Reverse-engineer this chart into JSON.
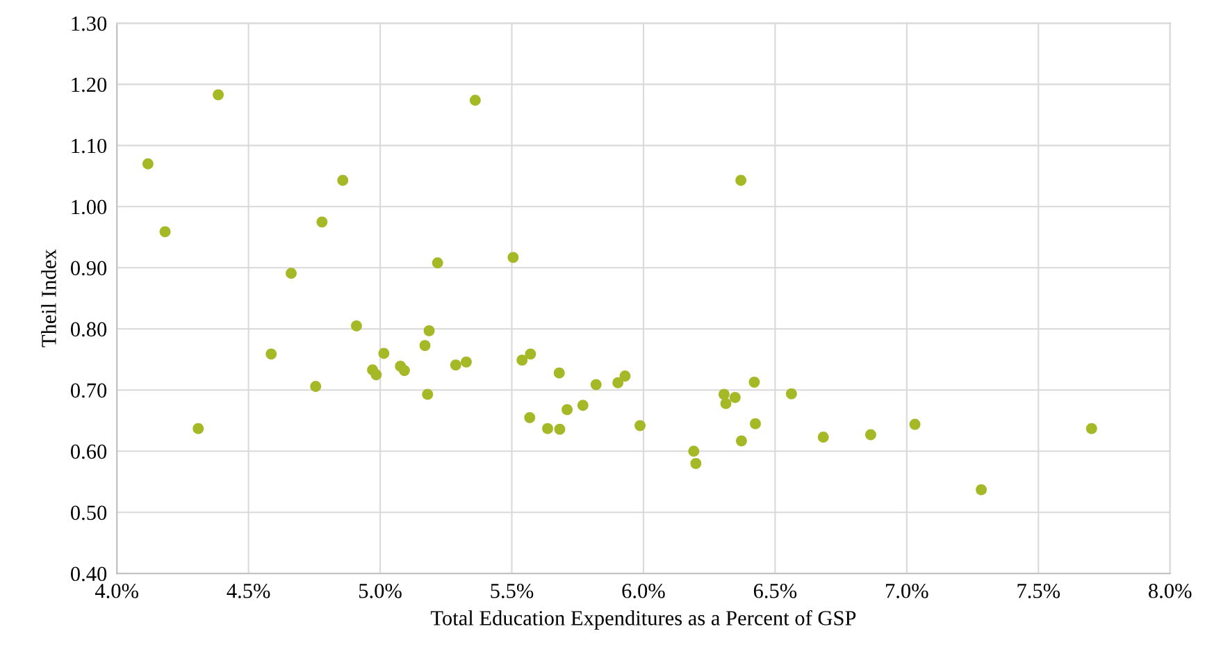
{
  "chart_data": {
    "type": "scatter",
    "xlabel": "Total Education Expenditures as a Percent of GSP",
    "ylabel": "Theil Index",
    "xlim": [
      4.0,
      8.0
    ],
    "ylim": [
      0.4,
      1.3
    ],
    "xticks": [
      {
        "value": 4.0,
        "label": "4.0%"
      },
      {
        "value": 4.5,
        "label": "4.5%"
      },
      {
        "value": 5.0,
        "label": "5.0%"
      },
      {
        "value": 5.5,
        "label": "5.5%"
      },
      {
        "value": 6.0,
        "label": "6.0%"
      },
      {
        "value": 6.5,
        "label": "6.5%"
      },
      {
        "value": 7.0,
        "label": "7.0%"
      },
      {
        "value": 7.5,
        "label": "7.5%"
      },
      {
        "value": 8.0,
        "label": "8.0%"
      }
    ],
    "yticks": [
      {
        "value": 0.4,
        "label": "0.40"
      },
      {
        "value": 0.5,
        "label": "0.50"
      },
      {
        "value": 0.6,
        "label": "0.60"
      },
      {
        "value": 0.7,
        "label": "0.70"
      },
      {
        "value": 0.8,
        "label": "0.80"
      },
      {
        "value": 0.9,
        "label": "0.90"
      },
      {
        "value": 1.0,
        "label": "1.00"
      },
      {
        "value": 1.1,
        "label": "1.10"
      },
      {
        "value": 1.2,
        "label": "1.20"
      },
      {
        "value": 1.3,
        "label": "1.30"
      }
    ],
    "grid": true,
    "marker": "circle",
    "series": [
      {
        "color": "#a5b825",
        "x": [
          4.118,
          4.385,
          4.183,
          4.309,
          4.662,
          4.586,
          4.779,
          4.858,
          4.755,
          4.91,
          4.971,
          4.985,
          5.014,
          5.077,
          5.092,
          5.17,
          5.186,
          5.18,
          5.218,
          5.287,
          5.327,
          5.361,
          5.505,
          5.539,
          5.571,
          5.568,
          5.636,
          5.682,
          5.68,
          5.71,
          5.77,
          5.82,
          5.903,
          5.93,
          5.987,
          6.191,
          6.199,
          6.306,
          6.313,
          6.348,
          6.421,
          6.425,
          6.372,
          6.37,
          6.562,
          6.683,
          6.863,
          7.031,
          7.283,
          7.702
        ],
        "values": [
          1.07,
          1.183,
          0.959,
          0.637,
          0.891,
          0.759,
          0.975,
          1.043,
          0.706,
          0.805,
          0.733,
          0.725,
          0.76,
          0.739,
          0.732,
          0.773,
          0.797,
          0.693,
          0.908,
          0.741,
          0.746,
          1.174,
          0.917,
          0.749,
          0.759,
          0.655,
          0.637,
          0.636,
          0.728,
          0.668,
          0.675,
          0.709,
          0.712,
          0.723,
          0.642,
          0.6,
          0.58,
          0.693,
          0.678,
          0.688,
          0.713,
          0.645,
          0.617,
          1.043,
          0.694,
          0.623,
          0.627,
          0.644,
          0.537,
          0.637
        ]
      }
    ]
  }
}
